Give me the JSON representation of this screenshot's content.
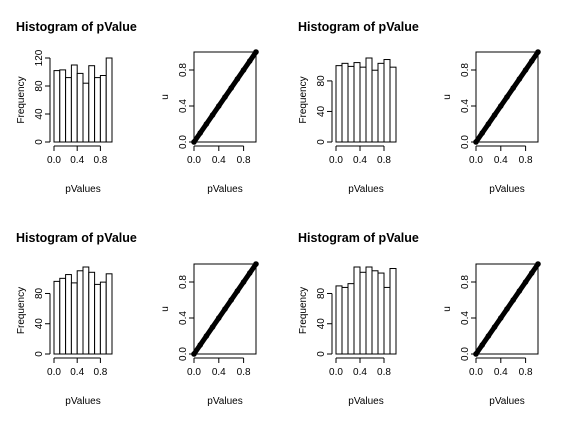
{
  "figure": {
    "layout": "2x4 grid (four histogram / uniform-QQ pairs)",
    "background": "#ffffff",
    "ink": "#000000"
  },
  "chart_data": [
    {
      "type": "bar",
      "panel": 1,
      "title": "Histogram of pValue",
      "xlabel": "pValues",
      "ylabel": "Frequency",
      "bin_edges": [
        0.0,
        0.1,
        0.2,
        0.3,
        0.4,
        0.5,
        0.6,
        0.7,
        0.8,
        0.9,
        1.0
      ],
      "values": [
        102,
        103,
        92,
        110,
        98,
        84,
        109,
        92,
        95,
        120
      ],
      "xticks": [
        "0.0",
        "0.4",
        "0.8"
      ],
      "yticks": [
        "0",
        "40",
        "80",
        "120"
      ],
      "xlim": [
        0,
        1
      ],
      "ylim": [
        0,
        120
      ],
      "grid": false,
      "bar_fill": "#ffffff"
    },
    {
      "type": "scatter",
      "panel": 2,
      "xlabel": "",
      "ylabel": "u",
      "description": "sorted p-values against uniform quantiles, dense points along the diagonal",
      "x": [
        0.0,
        0.1,
        0.2,
        0.3,
        0.4,
        0.5,
        0.6,
        0.7,
        0.8,
        0.9,
        1.0
      ],
      "y": [
        0.0,
        0.1,
        0.2,
        0.3,
        0.4,
        0.5,
        0.6,
        0.7,
        0.8,
        0.9,
        1.0
      ],
      "xticks": [
        "0.0",
        "0.4",
        "0.8"
      ],
      "yticks": [
        "0.0",
        "0.4",
        "0.8"
      ],
      "xlim": [
        0,
        1
      ],
      "ylim": [
        0,
        1
      ],
      "grid": false
    },
    {
      "type": "bar",
      "panel": 3,
      "title": "Histogram of pValue",
      "xlabel": "pValues",
      "ylabel": "Frequency",
      "bin_edges": [
        0.0,
        0.1,
        0.2,
        0.3,
        0.4,
        0.5,
        0.6,
        0.7,
        0.8,
        0.9,
        1.0
      ],
      "values": [
        100,
        103,
        99,
        104,
        98,
        110,
        94,
        103,
        108,
        98
      ],
      "xticks": [
        "0.0",
        "0.4",
        "0.8"
      ],
      "yticks": [
        "0",
        "40",
        "80"
      ],
      "xlim": [
        0,
        1
      ],
      "ylim": [
        0,
        110
      ],
      "grid": false,
      "bar_fill": "#ffffff"
    },
    {
      "type": "scatter",
      "panel": 4,
      "xlabel": "",
      "ylabel": "u",
      "x": [
        0.0,
        0.1,
        0.2,
        0.3,
        0.4,
        0.5,
        0.6,
        0.7,
        0.8,
        0.9,
        1.0
      ],
      "y": [
        0.0,
        0.1,
        0.2,
        0.3,
        0.4,
        0.5,
        0.6,
        0.7,
        0.8,
        0.9,
        1.0
      ],
      "xticks": [
        "0.0",
        "0.4",
        "0.8"
      ],
      "yticks": [
        "0.0",
        "0.4",
        "0.8"
      ],
      "xlim": [
        0,
        1
      ],
      "ylim": [
        0,
        1
      ],
      "grid": false
    },
    {
      "type": "bar",
      "panel": 5,
      "title": "Histogram of pValue",
      "xlabel": "pValues",
      "ylabel": "Frequency",
      "bin_edges": [
        0.0,
        0.1,
        0.2,
        0.3,
        0.4,
        0.5,
        0.6,
        0.7,
        0.8,
        0.9,
        1.0
      ],
      "values": [
        96,
        100,
        105,
        94,
        110,
        115,
        108,
        92,
        95,
        106
      ],
      "xticks": [
        "0.0",
        "0.4",
        "0.8"
      ],
      "yticks": [
        "0",
        "40",
        "80"
      ],
      "xlim": [
        0,
        1
      ],
      "ylim": [
        0,
        115
      ],
      "grid": false,
      "bar_fill": "#ffffff"
    },
    {
      "type": "scatter",
      "panel": 6,
      "xlabel": "",
      "ylabel": "u",
      "x": [
        0.0,
        0.1,
        0.2,
        0.3,
        0.4,
        0.5,
        0.6,
        0.7,
        0.8,
        0.9,
        1.0
      ],
      "y": [
        0.0,
        0.1,
        0.2,
        0.3,
        0.4,
        0.5,
        0.6,
        0.7,
        0.8,
        0.9,
        1.0
      ],
      "xticks": [
        "0.0",
        "0.4",
        "0.8"
      ],
      "yticks": [
        "0.0",
        "0.4",
        "0.8"
      ],
      "xlim": [
        0,
        1
      ],
      "ylim": [
        0,
        1
      ],
      "grid": false
    },
    {
      "type": "bar",
      "panel": 7,
      "title": "Histogram of pValue",
      "xlabel": "pValues",
      "ylabel": "Frequency",
      "bin_edges": [
        0.0,
        0.1,
        0.2,
        0.3,
        0.4,
        0.5,
        0.6,
        0.7,
        0.8,
        0.9,
        1.0
      ],
      "values": [
        90,
        88,
        93,
        115,
        108,
        115,
        110,
        107,
        88,
        113
      ],
      "xticks": [
        "0.0",
        "0.4",
        "0.8"
      ],
      "yticks": [
        "0",
        "40",
        "80"
      ],
      "xlim": [
        0,
        1
      ],
      "ylim": [
        0,
        115
      ],
      "grid": false,
      "bar_fill": "#ffffff"
    },
    {
      "type": "scatter",
      "panel": 8,
      "xlabel": "pValues",
      "ylabel": "u",
      "x": [
        0.0,
        0.1,
        0.2,
        0.3,
        0.4,
        0.5,
        0.6,
        0.7,
        0.8,
        0.9,
        1.0
      ],
      "y": [
        0.0,
        0.1,
        0.2,
        0.3,
        0.4,
        0.5,
        0.6,
        0.7,
        0.8,
        0.9,
        1.0
      ],
      "xticks": [
        "0.0",
        "0.4",
        "0.8"
      ],
      "yticks": [
        "0.0",
        "0.4",
        "0.8"
      ],
      "xlim": [
        0,
        1
      ],
      "ylim": [
        0,
        1
      ],
      "grid": false
    }
  ]
}
